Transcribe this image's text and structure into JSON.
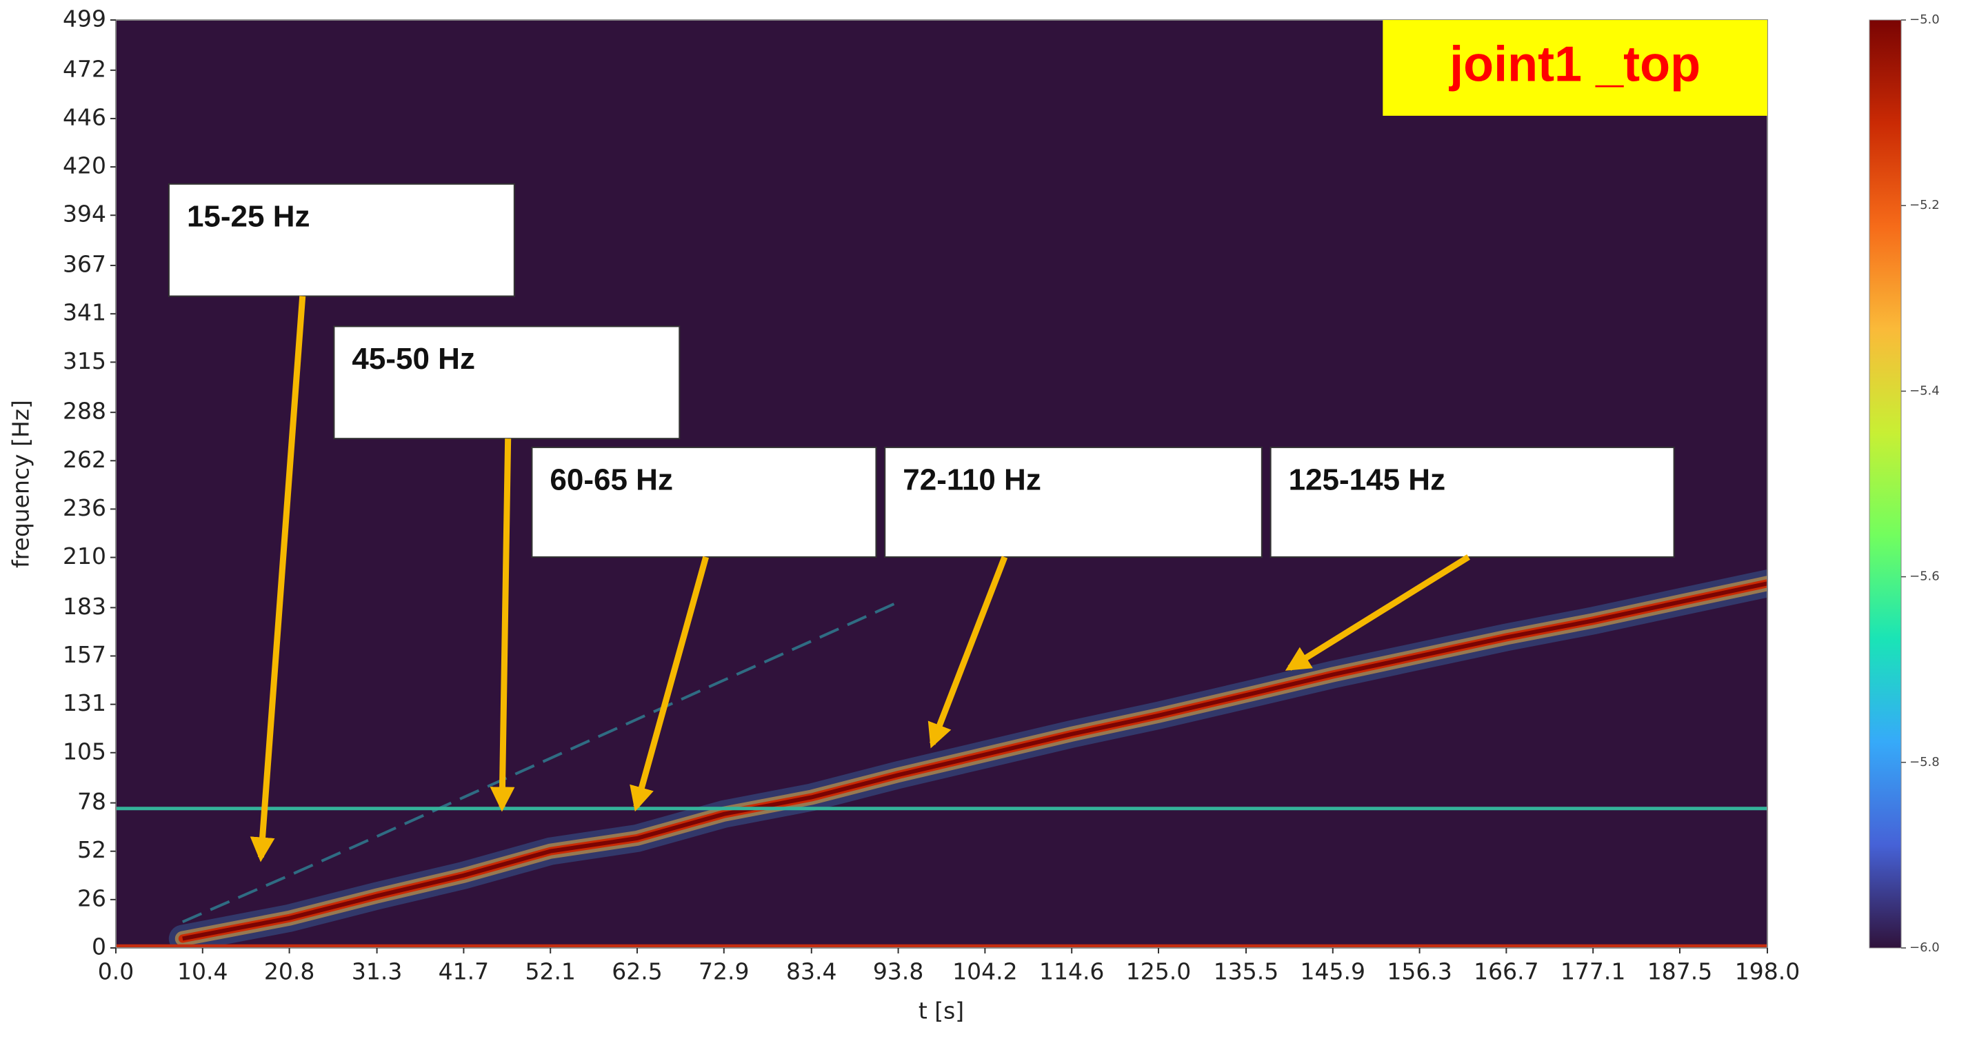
{
  "chart_data": {
    "type": "spectrogram",
    "title": "joint1 _top",
    "x_label": "t [s]",
    "y_label": "frequency [Hz]",
    "xlim": [
      0,
      198
    ],
    "ylim": [
      0,
      499
    ],
    "xticks": [
      {
        "value": 0,
        "label": "0.0"
      },
      10.4,
      20.8,
      31.3,
      41.7,
      52.1,
      62.5,
      72.9,
      83.4,
      93.8,
      104.2,
      114.6,
      {
        "value": 125,
        "label": "125.0"
      },
      135.5,
      145.9,
      156.3,
      166.7,
      177.1,
      187.5,
      {
        "value": 198,
        "label": "198.0"
      }
    ],
    "yticks": [
      0,
      26,
      52,
      78,
      105,
      131,
      157,
      183,
      210,
      236,
      262,
      288,
      315,
      341,
      367,
      394,
      420,
      446,
      472,
      499
    ],
    "background": "#30123b",
    "x": [
      0,
      8,
      20.8,
      31.3,
      41.7,
      52.1,
      62.5,
      72.9,
      83.4,
      93.8,
      104.2,
      114.6,
      125,
      135.5,
      145.9,
      156.3,
      166.7,
      177.1,
      187.5,
      198
    ],
    "series": [
      {
        "color": "#7a0403",
        "values": [
          null,
          5,
          16,
          28,
          39,
          52,
          59,
          72,
          81,
          93,
          104,
          115,
          125,
          136,
          147,
          157,
          167,
          176,
          186,
          196
        ]
      },
      {
        "color": "#2fa8b4",
        "values": [
          null,
          14,
          39,
          60,
          81,
          102,
          123,
          144,
          165,
          186,
          null,
          null,
          null,
          null,
          null,
          null,
          null,
          null,
          null,
          null
        ]
      },
      {
        "color": "#34b39a",
        "values": [
          75,
          75,
          75,
          75,
          75,
          75,
          75,
          75,
          75,
          75,
          75,
          75,
          75,
          75,
          75,
          75,
          75,
          75,
          75,
          75
        ]
      },
      {
        "color": "#c42d10",
        "values": [
          1,
          1,
          1,
          1,
          1,
          1,
          1,
          1,
          1,
          1,
          1,
          1,
          1,
          1,
          1,
          1,
          1,
          1,
          1,
          1
        ]
      }
    ],
    "annotations": [
      {
        "text": "15-25 Hz",
        "x": 17.4,
        "y": 48.8
      },
      {
        "text": "45-50 Hz",
        "x": 46.3,
        "y": 75.9
      },
      {
        "text": "60-65 Hz",
        "x": 62.4,
        "y": 75.9
      },
      {
        "text": "72-110 Hz",
        "x": 97.9,
        "y": 109.8
      },
      {
        "text": "125-145 Hz",
        "x": 140.7,
        "y": 150.5
      }
    ],
    "colorbar": {
      "clim": [
        -6,
        -5
      ],
      "ticks": [
        {
          "value": -5,
          "label": "−5.0"
        },
        {
          "value": -5.2,
          "label": "−5.2"
        },
        {
          "value": -5.4,
          "label": "−5.4"
        },
        {
          "value": -5.6,
          "label": "−5.6"
        },
        {
          "value": -5.8,
          "label": "−5.8"
        },
        {
          "value": -6,
          "label": "−6.0"
        }
      ],
      "colormap": [
        "#30123b",
        "#4662d7",
        "#36aaf9",
        "#1ae4b6",
        "#72fe5e",
        "#c8ef34",
        "#faba39",
        "#f66b19",
        "#ca2a04",
        "#7a0403"
      ]
    }
  }
}
